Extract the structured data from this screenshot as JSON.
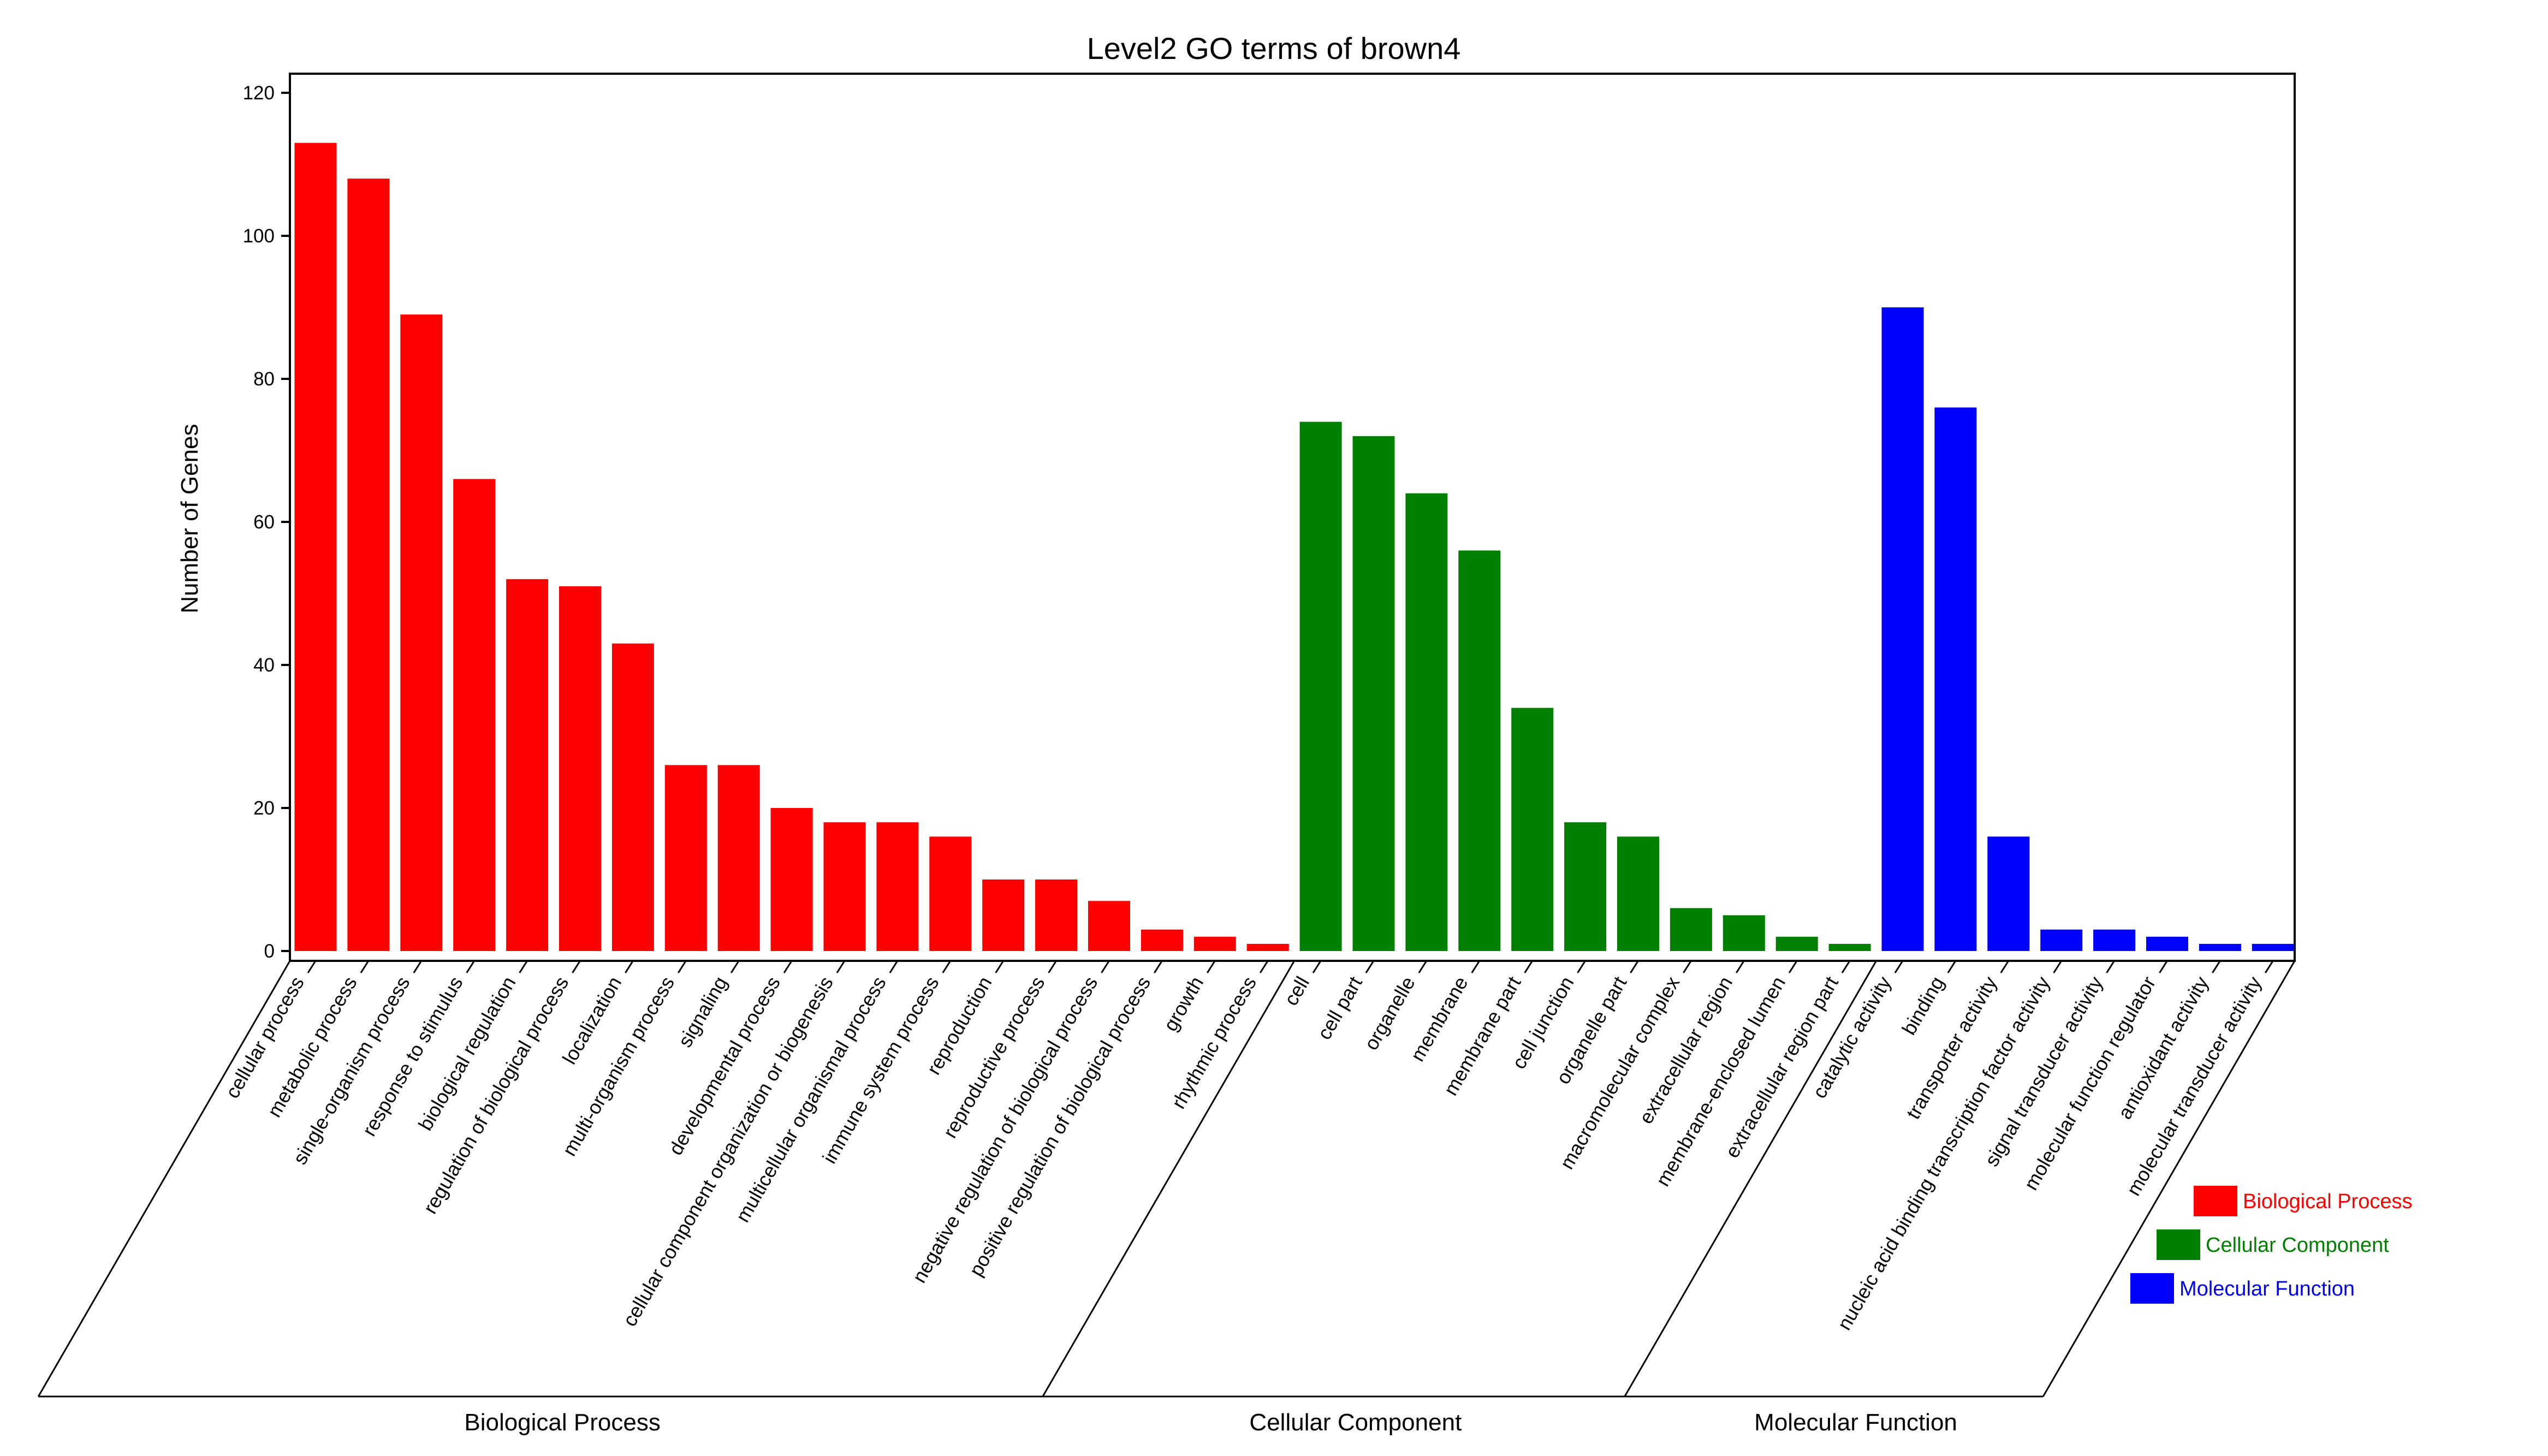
{
  "chart_data": {
    "type": "bar",
    "title": "Level2 GO terms of brown4",
    "xlabel": "",
    "ylabel": "Number of Genes",
    "ylim": [
      0,
      120
    ],
    "yticks": [
      0,
      20,
      40,
      60,
      80,
      100,
      120
    ],
    "grid": false,
    "legend_position": "bottom-right",
    "colors": {
      "Biological Process": "#ff0000",
      "Cellular Component": "#008000",
      "Molecular Function": "#0000ff"
    },
    "groups": [
      {
        "name": "Biological Process",
        "color": "#ff0000",
        "categories": [
          "cellular process",
          "metabolic process",
          "single-organism process",
          "response to stimulus",
          "biological regulation",
          "regulation of biological process",
          "localization",
          "multi-organism process",
          "signaling",
          "developmental process",
          "cellular component organization or biogenesis",
          "multicellular organismal process",
          "immune system process",
          "reproduction",
          "reproductive process",
          "negative regulation of biological process",
          "positive regulation of biological process",
          "growth",
          "rhythmic process"
        ],
        "values": [
          113,
          108,
          89,
          66,
          52,
          51,
          43,
          26,
          26,
          20,
          18,
          18,
          16,
          10,
          10,
          7,
          3,
          2,
          1
        ]
      },
      {
        "name": "Cellular Component",
        "color": "#008000",
        "categories": [
          "cell",
          "cell part",
          "organelle",
          "membrane",
          "membrane part",
          "cell junction",
          "organelle part",
          "macromolecular complex",
          "extracellular region",
          "membrane-enclosed lumen",
          "extracellular region part"
        ],
        "values": [
          74,
          72,
          64,
          56,
          34,
          18,
          16,
          6,
          5,
          2,
          1
        ]
      },
      {
        "name": "Molecular Function",
        "color": "#0000ff",
        "categories": [
          "catalytic activity",
          "binding",
          "transporter activity",
          "nucleic acid binding transcription factor activity",
          "signal transducer activity",
          "molecular function regulator",
          "antioxidant activity",
          "molecular transducer activity"
        ],
        "values": [
          90,
          76,
          16,
          3,
          3,
          2,
          1,
          1
        ]
      }
    ],
    "legend": [
      "Biological Process",
      "Cellular Component",
      "Molecular Function"
    ]
  }
}
